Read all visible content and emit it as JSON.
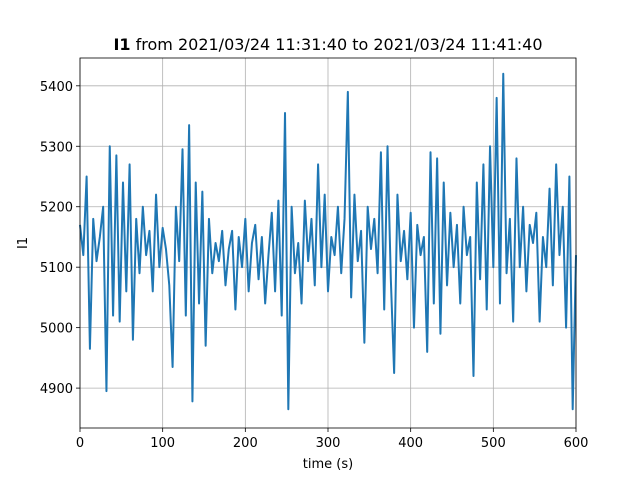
{
  "chart_data": {
    "type": "line",
    "title_prefix": "I1",
    "title": "from 2021/03/24 11:31:40 to 2021/03/24 11:41:40",
    "x_label": "time (s)",
    "y_label": "I1",
    "xlim": [
      0,
      600
    ],
    "ylim": [
      4834,
      5446
    ],
    "xticks": [
      0,
      100,
      200,
      300,
      400,
      500,
      600
    ],
    "yticks": [
      4900,
      5000,
      5100,
      5200,
      5300,
      5400
    ],
    "grid": true,
    "x": [
      0,
      4,
      8,
      12,
      16,
      20,
      24,
      28,
      32,
      36,
      40,
      44,
      48,
      52,
      56,
      60,
      64,
      68,
      72,
      76,
      80,
      84,
      88,
      92,
      96,
      100,
      104,
      108,
      112,
      116,
      120,
      124,
      128,
      132,
      136,
      140,
      144,
      148,
      152,
      156,
      160,
      164,
      168,
      172,
      176,
      180,
      184,
      188,
      192,
      196,
      200,
      204,
      208,
      212,
      216,
      220,
      224,
      228,
      232,
      236,
      240,
      244,
      248,
      252,
      256,
      260,
      264,
      268,
      272,
      276,
      280,
      284,
      288,
      292,
      296,
      300,
      304,
      308,
      312,
      316,
      320,
      324,
      328,
      332,
      336,
      340,
      344,
      348,
      352,
      356,
      360,
      364,
      368,
      372,
      376,
      380,
      384,
      388,
      392,
      396,
      400,
      404,
      408,
      412,
      416,
      420,
      424,
      428,
      432,
      436,
      440,
      444,
      448,
      452,
      456,
      460,
      464,
      468,
      472,
      476,
      480,
      484,
      488,
      492,
      496,
      500,
      504,
      508,
      512,
      516,
      520,
      524,
      528,
      532,
      536,
      540,
      544,
      548,
      552,
      556,
      560,
      564,
      568,
      572,
      576,
      580,
      584,
      588,
      592,
      596,
      600
    ],
    "series": [
      {
        "name": "I1",
        "color": "#1f77b4",
        "values": [
          5170,
          5120,
          5250,
          4965,
          5180,
          5110,
          5150,
          5200,
          4895,
          5300,
          5020,
          5285,
          5010,
          5240,
          5060,
          5270,
          4980,
          5180,
          5090,
          5200,
          5120,
          5160,
          5060,
          5220,
          5100,
          5165,
          5130,
          5070,
          4935,
          5200,
          5110,
          5295,
          5020,
          5335,
          4878,
          5240,
          5040,
          5225,
          4970,
          5180,
          5090,
          5140,
          5110,
          5160,
          5070,
          5130,
          5160,
          5030,
          5150,
          5100,
          5180,
          5060,
          5140,
          5170,
          5080,
          5150,
          5040,
          5120,
          5190,
          5060,
          5210,
          5020,
          5355,
          4865,
          5200,
          5090,
          5140,
          5040,
          5210,
          5110,
          5180,
          5070,
          5270,
          5100,
          5220,
          5060,
          5150,
          5120,
          5200,
          5090,
          5180,
          5390,
          5050,
          5220,
          5110,
          5160,
          4975,
          5200,
          5130,
          5180,
          5090,
          5290,
          5030,
          5300,
          5080,
          4925,
          5220,
          5110,
          5160,
          5080,
          5190,
          5000,
          5170,
          5120,
          5150,
          4960,
          5290,
          5040,
          5280,
          4990,
          5240,
          5070,
          5190,
          5100,
          5170,
          5040,
          5200,
          5120,
          5150,
          4920,
          5240,
          5080,
          5270,
          5030,
          5300,
          5100,
          5380,
          5040,
          5420,
          5090,
          5180,
          5010,
          5280,
          5100,
          5200,
          5060,
          5170,
          5140,
          5190,
          5010,
          5150,
          5100,
          5230,
          5070,
          5270,
          5120,
          5200,
          5000,
          5250,
          4865,
          5120
        ]
      }
    ]
  }
}
